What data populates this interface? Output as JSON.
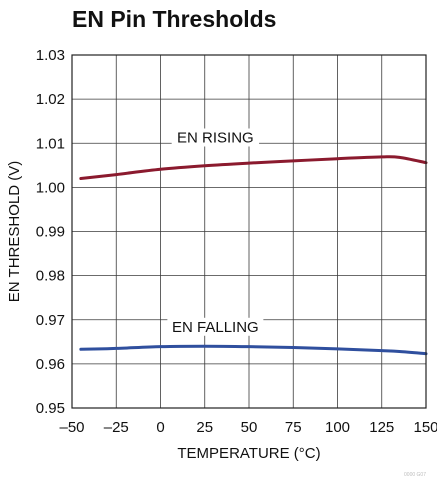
{
  "chart_data": {
    "type": "line",
    "title": "EN Pin Thresholds",
    "xlabel": "TEMPERATURE (°C)",
    "ylabel": "EN THRESHOLD (V)",
    "xlim": [
      -50,
      150
    ],
    "ylim": [
      0.95,
      1.03
    ],
    "xticks": [
      -50,
      -25,
      0,
      25,
      50,
      75,
      100,
      125,
      150
    ],
    "xtick_labels": [
      "–50",
      "–25",
      "0",
      "25",
      "50",
      "75",
      "100",
      "125",
      "150"
    ],
    "yticks": [
      0.95,
      0.96,
      0.97,
      0.98,
      0.99,
      1.0,
      1.01,
      1.02,
      1.03
    ],
    "ytick_labels": [
      "0.95",
      "0.96",
      "0.97",
      "0.98",
      "0.99",
      "1.00",
      "1.01",
      "1.02",
      "1.03"
    ],
    "grid": true,
    "legend": "none",
    "footnote": "0000 G07",
    "series": [
      {
        "name": "EN RISING",
        "color": "#8b1a2e",
        "x": [
          -45,
          -25,
          0,
          25,
          50,
          75,
          100,
          125,
          135,
          150
        ],
        "y": [
          1.002,
          1.0029,
          1.0041,
          1.0049,
          1.0055,
          1.006,
          1.0065,
          1.0069,
          1.0068,
          1.0056
        ]
      },
      {
        "name": "EN FALLING",
        "color": "#2f4f9e",
        "x": [
          -45,
          -25,
          0,
          25,
          50,
          75,
          100,
          125,
          135,
          150
        ],
        "y": [
          0.9633,
          0.9635,
          0.9639,
          0.964,
          0.9639,
          0.9637,
          0.9634,
          0.963,
          0.9628,
          0.9623
        ]
      }
    ],
    "annotations": [
      {
        "text": "EN RISING",
        "x": 31,
        "y": 1.0104
      },
      {
        "text": "EN FALLING",
        "x": 31,
        "y": 0.9675
      }
    ]
  }
}
